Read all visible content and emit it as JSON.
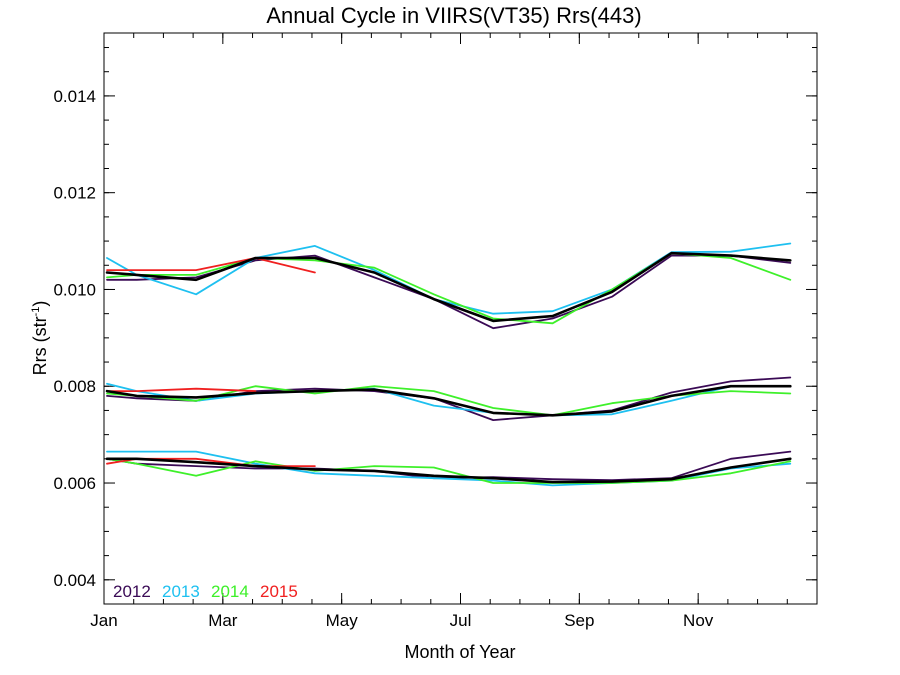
{
  "chart_data": {
    "type": "line",
    "title": "Annual Cycle in VIIRS(VT35) Rrs(443)",
    "xlabel": "Month of Year",
    "ylabel": "Rrs (str",
    "ylabel_sup": "-1",
    "ylabel_close": ")",
    "xlim": [
      1,
      13
    ],
    "ylim": [
      0.0035,
      0.0153
    ],
    "x_ticks": [
      {
        "value": 1,
        "label": "Jan"
      },
      {
        "value": 3,
        "label": "Mar"
      },
      {
        "value": 5,
        "label": "May"
      },
      {
        "value": 7,
        "label": "Jul"
      },
      {
        "value": 9,
        "label": "Sep"
      },
      {
        "value": 11,
        "label": "Nov"
      }
    ],
    "y_ticks": [
      {
        "value": 0.004,
        "label": "0.004"
      },
      {
        "value": 0.006,
        "label": "0.006"
      },
      {
        "value": 0.008,
        "label": "0.008"
      },
      {
        "value": 0.01,
        "label": "0.010"
      },
      {
        "value": 0.012,
        "label": "0.012"
      },
      {
        "value": 0.014,
        "label": "0.014"
      }
    ],
    "x_minor_step": 0.5,
    "y_minor_step": 0.0005,
    "grid": false,
    "legend_position": "bottom-left",
    "legend": [
      {
        "label": "2012",
        "color": "#3a0a55"
      },
      {
        "label": "2013",
        "color": "#1ec0f0"
      },
      {
        "label": "2014",
        "color": "#3ef02a"
      },
      {
        "label": "2015",
        "color": "#f02020"
      }
    ],
    "groups": [
      {
        "series": [
          {
            "name": "2012",
            "color": "#3a0a55",
            "x": [
              1.05,
              1.55,
              2.55,
              3.55,
              4.55,
              5.55,
              6.55,
              7.55,
              8.55,
              9.55,
              10.55,
              11.55,
              12.55
            ],
            "y": [
              0.0102,
              0.0102,
              0.01025,
              0.0106,
              0.0107,
              0.01025,
              0.0098,
              0.0092,
              0.0094,
              0.00985,
              0.0107,
              0.0107,
              0.01055
            ]
          },
          {
            "name": "2013",
            "color": "#1ec0f0",
            "x": [
              1.05,
              1.55,
              2.55,
              3.55,
              4.55,
              5.55,
              6.55,
              7.55,
              8.55,
              9.55,
              10.55,
              11.55,
              12.55
            ],
            "y": [
              0.01065,
              0.0103,
              0.0099,
              0.01065,
              0.0109,
              0.0104,
              0.0098,
              0.0095,
              0.00955,
              0.01,
              0.01077,
              0.01078,
              0.01095
            ]
          },
          {
            "name": "2014",
            "color": "#3ef02a",
            "x": [
              1.05,
              1.55,
              2.55,
              3.55,
              4.55,
              5.55,
              6.55,
              7.55,
              8.55,
              9.55,
              10.55,
              11.55,
              12.55
            ],
            "y": [
              0.01025,
              0.0103,
              0.0103,
              0.01065,
              0.0106,
              0.01045,
              0.0099,
              0.0094,
              0.0093,
              0.01,
              0.01075,
              0.01065,
              0.0102
            ]
          },
          {
            "name": "2015",
            "color": "#f02020",
            "x": [
              1.05,
              1.55,
              2.55,
              3.55,
              4.55
            ],
            "y": [
              0.0104,
              0.0104,
              0.0104,
              0.01065,
              0.01035
            ]
          },
          {
            "name": "",
            "color": "#000000",
            "x": [
              1.05,
              1.55,
              2.55,
              3.55,
              4.55,
              5.55,
              6.55,
              7.55,
              8.55,
              9.55,
              10.55,
              11.55,
              12.55
            ],
            "y": [
              0.01035,
              0.0103,
              0.0102,
              0.01065,
              0.01065,
              0.01035,
              0.0098,
              0.00935,
              0.00945,
              0.00995,
              0.01075,
              0.0107,
              0.0106
            ]
          }
        ]
      },
      {
        "series": [
          {
            "name": "2012",
            "color": "#3a0a55",
            "x": [
              1.05,
              1.55,
              2.55,
              3.55,
              4.55,
              5.55,
              6.55,
              7.55,
              8.55,
              9.55,
              10.55,
              11.55,
              12.55
            ],
            "y": [
              0.0078,
              0.00775,
              0.0077,
              0.0079,
              0.00795,
              0.0079,
              0.00775,
              0.0073,
              0.0074,
              0.0075,
              0.00787,
              0.0081,
              0.00818
            ]
          },
          {
            "name": "2013",
            "color": "#1ec0f0",
            "x": [
              1.05,
              1.55,
              2.55,
              3.55,
              4.55,
              5.55,
              6.55,
              7.55,
              8.55,
              9.55,
              10.55,
              11.55,
              12.55
            ],
            "y": [
              0.00805,
              0.0079,
              0.0077,
              0.00785,
              0.0079,
              0.00795,
              0.0076,
              0.00745,
              0.0074,
              0.00742,
              0.0077,
              0.008,
              0.008
            ]
          },
          {
            "name": "2014",
            "color": "#3ef02a",
            "x": [
              1.05,
              1.55,
              2.55,
              3.55,
              4.55,
              5.55,
              6.55,
              7.55,
              8.55,
              9.55,
              10.55,
              11.55,
              12.55
            ],
            "y": [
              0.00785,
              0.0078,
              0.0077,
              0.008,
              0.00785,
              0.008,
              0.0079,
              0.00755,
              0.0074,
              0.00765,
              0.0078,
              0.0079,
              0.00785
            ]
          },
          {
            "name": "2015",
            "color": "#f02020",
            "x": [
              1.05,
              1.55,
              2.55,
              3.55
            ],
            "y": [
              0.0079,
              0.0079,
              0.00795,
              0.0079
            ]
          },
          {
            "name": "",
            "color": "#000000",
            "x": [
              1.05,
              1.55,
              2.55,
              3.55,
              4.55,
              5.55,
              6.55,
              7.55,
              8.55,
              9.55,
              10.55,
              11.55,
              12.55
            ],
            "y": [
              0.0079,
              0.0078,
              0.00777,
              0.00786,
              0.0079,
              0.00793,
              0.00775,
              0.00745,
              0.0074,
              0.00748,
              0.0078,
              0.008,
              0.008
            ]
          }
        ]
      },
      {
        "series": [
          {
            "name": "2012",
            "color": "#3a0a55",
            "x": [
              1.05,
              1.55,
              2.55,
              3.55,
              4.55,
              5.55,
              6.55,
              7.55,
              8.55,
              9.55,
              10.55,
              11.55,
              12.55
            ],
            "y": [
              0.0065,
              0.0064,
              0.00635,
              0.0063,
              0.0063,
              0.00625,
              0.0061,
              0.00612,
              0.00608,
              0.00606,
              0.0061,
              0.0065,
              0.00665
            ]
          },
          {
            "name": "2013",
            "color": "#1ec0f0",
            "x": [
              1.05,
              1.55,
              2.55,
              3.55,
              4.55,
              5.55,
              6.55,
              7.55,
              8.55,
              9.55,
              10.55,
              11.55,
              12.55
            ],
            "y": [
              0.00665,
              0.00665,
              0.00665,
              0.0064,
              0.0062,
              0.00615,
              0.0061,
              0.00605,
              0.00595,
              0.006,
              0.00605,
              0.0063,
              0.0064
            ]
          },
          {
            "name": "2014",
            "color": "#3ef02a",
            "x": [
              1.05,
              1.55,
              2.55,
              3.55,
              4.55,
              5.55,
              6.55,
              7.55,
              8.55,
              9.55,
              10.55,
              11.55,
              12.55
            ],
            "y": [
              0.0065,
              0.0064,
              0.00615,
              0.00645,
              0.00625,
              0.00635,
              0.00632,
              0.006,
              0.006,
              0.006,
              0.00605,
              0.0062,
              0.00645
            ]
          },
          {
            "name": "2015",
            "color": "#f02020",
            "x": [
              1.05,
              1.55,
              2.55,
              3.55,
              4.55
            ],
            "y": [
              0.0064,
              0.0065,
              0.0065,
              0.00635,
              0.00635
            ]
          },
          {
            "name": "",
            "color": "#000000",
            "x": [
              1.05,
              1.55,
              2.55,
              3.55,
              4.55,
              5.55,
              6.55,
              7.55,
              8.55,
              9.55,
              10.55,
              11.55,
              12.55
            ],
            "y": [
              0.0065,
              0.0065,
              0.00643,
              0.00635,
              0.00628,
              0.00625,
              0.00615,
              0.0061,
              0.00602,
              0.00603,
              0.00608,
              0.00632,
              0.0065
            ]
          }
        ]
      }
    ]
  }
}
